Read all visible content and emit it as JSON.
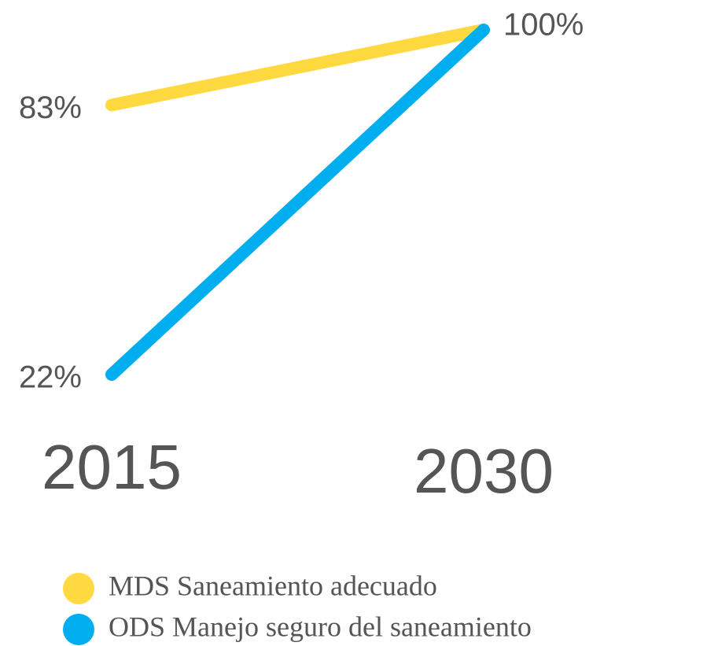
{
  "chart_data": {
    "type": "line",
    "categories": [
      "2015",
      "2030"
    ],
    "series": [
      {
        "name": "MDS Saneamiento adecuado",
        "color": "#FFD93F",
        "values": [
          83,
          100
        ],
        "value_labels": [
          "83%",
          "100%"
        ]
      },
      {
        "name": "ODS Manejo seguro del saneamiento",
        "color": "#00AEEF",
        "values": [
          22,
          100
        ],
        "value_labels": [
          "22%",
          null
        ]
      }
    ]
  }
}
